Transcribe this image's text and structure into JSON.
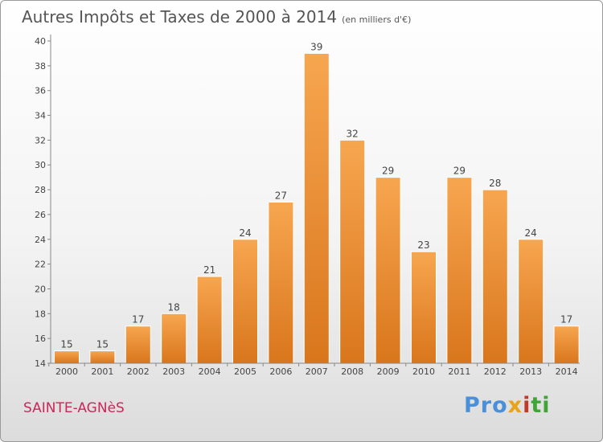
{
  "header": {
    "title": "Autres Impôts et Taxes de 2000 à 2014",
    "unit": "(en milliers d'€)"
  },
  "footer": {
    "city": "SAINTE-AGNèS",
    "logo": "Proxiti"
  },
  "colors": {
    "bar_top": "#f7a650",
    "bar_bottom": "#d9761c",
    "axis_text": "#444444",
    "city": "#c8285a"
  },
  "chart_data": {
    "type": "bar",
    "title": "Autres Impôts et Taxes de 2000 à 2014",
    "subtitle": "(en milliers d'€)",
    "xlabel": "",
    "ylabel": "",
    "categories": [
      "2000",
      "2001",
      "2002",
      "2003",
      "2004",
      "2005",
      "2006",
      "2007",
      "2008",
      "2009",
      "2010",
      "2011",
      "2012",
      "2013",
      "2014"
    ],
    "values": [
      15,
      15,
      17,
      18,
      21,
      24,
      27,
      39,
      32,
      29,
      23,
      29,
      28,
      24,
      17
    ],
    "ylim": [
      14,
      40
    ],
    "yticks": [
      14,
      16,
      18,
      20,
      22,
      24,
      26,
      28,
      30,
      32,
      34,
      36,
      38,
      40
    ],
    "grid": false,
    "data_labels": true
  }
}
